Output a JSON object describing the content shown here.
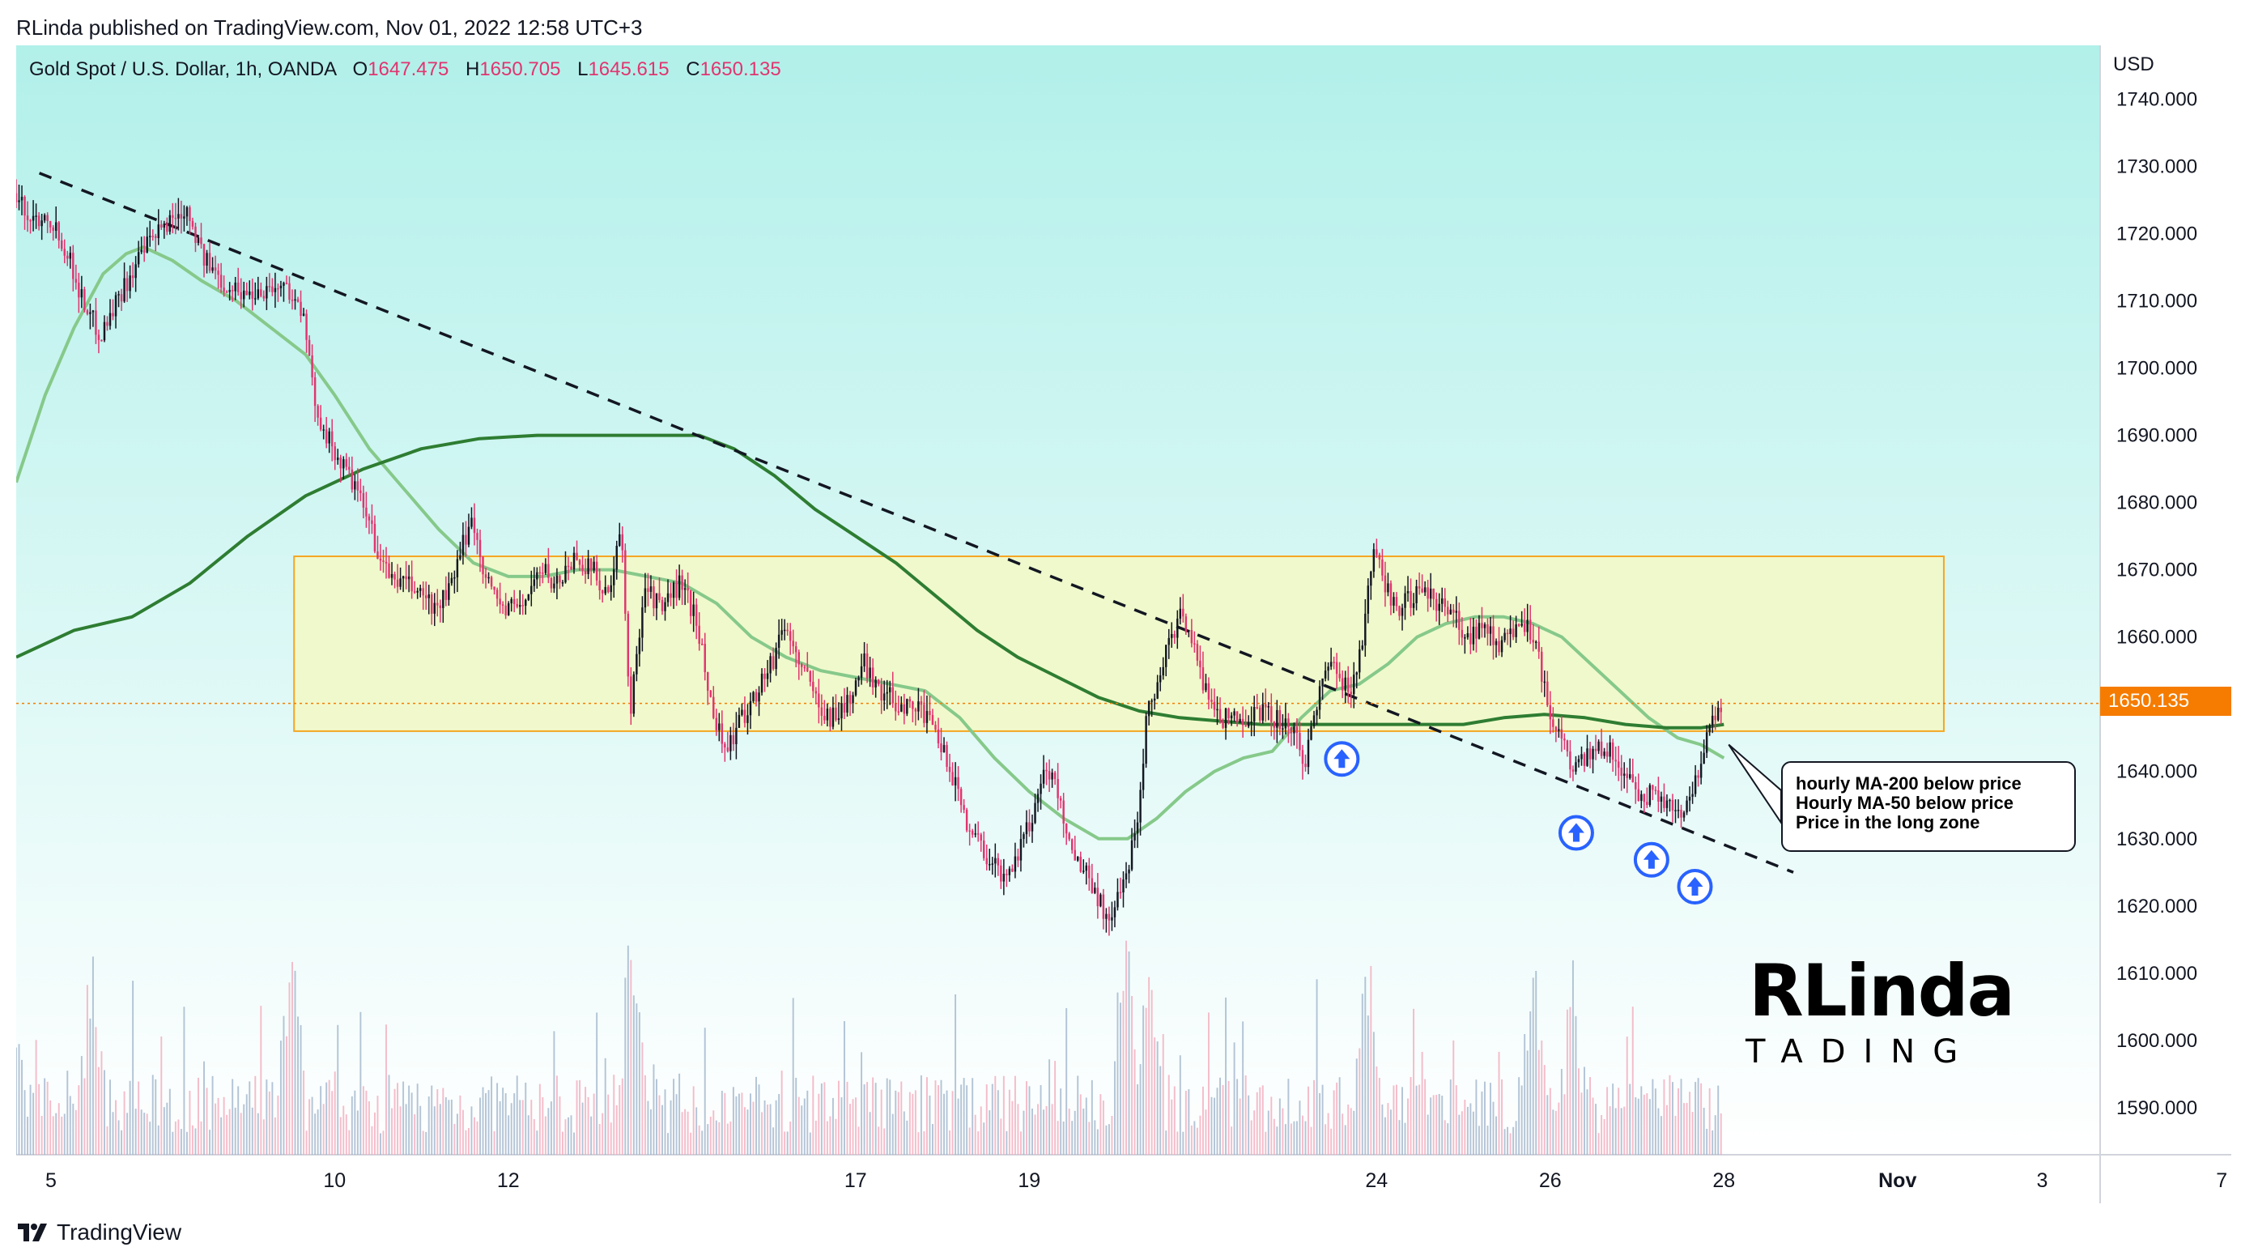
{
  "header": {
    "publisher": "RLinda published on TradingView.com, Nov 01, 2022 12:58 UTC+3"
  },
  "legend": {
    "symbol": "Gold Spot / U.S. Dollar, 1h, OANDA",
    "open_key": "O",
    "open": "1647.475",
    "high_key": "H",
    "high": "1650.705",
    "low_key": "L",
    "low": "1645.615",
    "close_key": "C",
    "close": "1650.135"
  },
  "price_axis": {
    "currency": "USD",
    "current_price": "1650.135"
  },
  "annotation": {
    "lines": [
      "hourly MA-200 below price",
      "Hourly MA-50 below price",
      "Price in the long zone"
    ]
  },
  "watermark": {
    "main": "RLinda",
    "sub": "TADING"
  },
  "footer": {
    "brand": "TradingView"
  },
  "colors": {
    "bg_top": "#b2f0ea",
    "bg_bottom": "#ffffff",
    "up": "#131722",
    "down": "#e0356f",
    "ma50": "#86c98a",
    "ma200": "#2e7d32",
    "zone_fill": "#f3f9c4",
    "zone_border": "#f5a623",
    "trend": "#131722",
    "arrow": "#2962ff",
    "price_line": "#f57c00"
  },
  "chart_data": {
    "type": "candlestick",
    "x_ticks": [
      "5",
      "10",
      "12",
      "17",
      "19",
      "24",
      "26",
      "28",
      "Nov",
      "3",
      "7"
    ],
    "y_ticks": [
      "1740.000",
      "1730.000",
      "1720.000",
      "1710.000",
      "1700.000",
      "1690.000",
      "1680.000",
      "1670.000",
      "1660.000",
      "1650.000",
      "1640.000",
      "1630.000",
      "1620.000",
      "1610.000",
      "1600.000",
      "1590.000"
    ],
    "ylim": [
      1583,
      1748
    ],
    "x_range": [
      0,
      720
    ],
    "x_tick_positions": [
      12,
      110,
      170,
      290,
      350,
      470,
      530,
      590,
      650,
      700,
      762
    ],
    "price_anchors": [
      [
        0,
        1726
      ],
      [
        6,
        1722
      ],
      [
        12,
        1723
      ],
      [
        18,
        1718
      ],
      [
        24,
        1710
      ],
      [
        30,
        1705
      ],
      [
        38,
        1712
      ],
      [
        46,
        1718
      ],
      [
        54,
        1722
      ],
      [
        60,
        1724
      ],
      [
        66,
        1716
      ],
      [
        72,
        1713
      ],
      [
        80,
        1711
      ],
      [
        88,
        1712
      ],
      [
        95,
        1712
      ],
      [
        100,
        1708
      ],
      [
        104,
        1695
      ],
      [
        110,
        1688
      ],
      [
        116,
        1684
      ],
      [
        122,
        1678
      ],
      [
        128,
        1670
      ],
      [
        134,
        1668
      ],
      [
        140,
        1667
      ],
      [
        146,
        1664
      ],
      [
        152,
        1668
      ],
      [
        158,
        1678
      ],
      [
        164,
        1668
      ],
      [
        170,
        1664
      ],
      [
        176,
        1665
      ],
      [
        182,
        1670
      ],
      [
        188,
        1668
      ],
      [
        194,
        1672
      ],
      [
        200,
        1670
      ],
      [
        206,
        1666
      ],
      [
        210,
        1676
      ],
      [
        213,
        1648
      ],
      [
        218,
        1668
      ],
      [
        224,
        1664
      ],
      [
        230,
        1668
      ],
      [
        236,
        1663
      ],
      [
        240,
        1652
      ],
      [
        246,
        1643
      ],
      [
        252,
        1648
      ],
      [
        258,
        1653
      ],
      [
        262,
        1656
      ],
      [
        266,
        1662
      ],
      [
        270,
        1658
      ],
      [
        276,
        1652
      ],
      [
        282,
        1648
      ],
      [
        288,
        1650
      ],
      [
        294,
        1656
      ],
      [
        300,
        1652
      ],
      [
        306,
        1650
      ],
      [
        312,
        1650
      ],
      [
        318,
        1646
      ],
      [
        324,
        1640
      ],
      [
        330,
        1632
      ],
      [
        336,
        1628
      ],
      [
        342,
        1624
      ],
      [
        346,
        1627
      ],
      [
        352,
        1633
      ],
      [
        356,
        1641
      ],
      [
        360,
        1638
      ],
      [
        366,
        1628
      ],
      [
        372,
        1624
      ],
      [
        378,
        1618
      ],
      [
        383,
        1622
      ],
      [
        388,
        1632
      ],
      [
        392,
        1650
      ],
      [
        396,
        1654
      ],
      [
        400,
        1660
      ],
      [
        404,
        1664
      ],
      [
        408,
        1658
      ],
      [
        412,
        1652
      ],
      [
        418,
        1648
      ],
      [
        424,
        1648
      ],
      [
        430,
        1649
      ],
      [
        436,
        1648
      ],
      [
        442,
        1646
      ],
      [
        446,
        1641
      ],
      [
        450,
        1650
      ],
      [
        454,
        1656
      ],
      [
        458,
        1654
      ],
      [
        462,
        1652
      ],
      [
        466,
        1660
      ],
      [
        470,
        1672
      ],
      [
        474,
        1668
      ],
      [
        478,
        1664
      ],
      [
        484,
        1666
      ],
      [
        490,
        1666
      ],
      [
        496,
        1664
      ],
      [
        502,
        1660
      ],
      [
        508,
        1662
      ],
      [
        514,
        1658
      ],
      [
        520,
        1663
      ],
      [
        526,
        1660
      ],
      [
        530,
        1650
      ],
      [
        534,
        1646
      ],
      [
        538,
        1640
      ],
      [
        544,
        1642
      ],
      [
        550,
        1644
      ],
      [
        556,
        1640
      ],
      [
        562,
        1636
      ],
      [
        568,
        1637
      ],
      [
        574,
        1634
      ],
      [
        580,
        1636
      ],
      [
        584,
        1643
      ],
      [
        588,
        1648
      ],
      [
        590,
        1650
      ]
    ],
    "candle_count": 600,
    "ma50_points": [
      [
        0,
        1683
      ],
      [
        10,
        1696
      ],
      [
        20,
        1706
      ],
      [
        30,
        1714
      ],
      [
        38,
        1717
      ],
      [
        44,
        1718
      ],
      [
        54,
        1716
      ],
      [
        64,
        1713
      ],
      [
        76,
        1710
      ],
      [
        88,
        1706
      ],
      [
        100,
        1702
      ],
      [
        110,
        1696
      ],
      [
        122,
        1688
      ],
      [
        134,
        1682
      ],
      [
        146,
        1676
      ],
      [
        158,
        1671
      ],
      [
        170,
        1669
      ],
      [
        182,
        1669
      ],
      [
        194,
        1670
      ],
      [
        206,
        1670
      ],
      [
        218,
        1669
      ],
      [
        230,
        1668
      ],
      [
        242,
        1665
      ],
      [
        254,
        1660
      ],
      [
        266,
        1657
      ],
      [
        278,
        1655
      ],
      [
        290,
        1654
      ],
      [
        302,
        1653
      ],
      [
        314,
        1652
      ],
      [
        326,
        1648
      ],
      [
        338,
        1642
      ],
      [
        350,
        1637
      ],
      [
        362,
        1633
      ],
      [
        374,
        1630
      ],
      [
        384,
        1630
      ],
      [
        394,
        1633
      ],
      [
        404,
        1637
      ],
      [
        414,
        1640
      ],
      [
        424,
        1642
      ],
      [
        434,
        1643
      ],
      [
        444,
        1648
      ],
      [
        454,
        1652
      ],
      [
        464,
        1653
      ],
      [
        474,
        1656
      ],
      [
        484,
        1660
      ],
      [
        494,
        1662
      ],
      [
        504,
        1663
      ],
      [
        514,
        1663
      ],
      [
        524,
        1662
      ],
      [
        534,
        1660
      ],
      [
        544,
        1656
      ],
      [
        554,
        1652
      ],
      [
        564,
        1648
      ],
      [
        574,
        1645
      ],
      [
        582,
        1644
      ],
      [
        590,
        1642
      ]
    ],
    "ma200_points": [
      [
        0,
        1657
      ],
      [
        20,
        1661
      ],
      [
        40,
        1663
      ],
      [
        60,
        1668
      ],
      [
        80,
        1675
      ],
      [
        100,
        1681
      ],
      [
        120,
        1685
      ],
      [
        140,
        1688
      ],
      [
        160,
        1689.5
      ],
      [
        180,
        1690
      ],
      [
        200,
        1690
      ],
      [
        220,
        1690
      ],
      [
        236,
        1690
      ],
      [
        248,
        1688
      ],
      [
        262,
        1684
      ],
      [
        276,
        1679
      ],
      [
        290,
        1675
      ],
      [
        304,
        1671
      ],
      [
        318,
        1666
      ],
      [
        332,
        1661
      ],
      [
        346,
        1657
      ],
      [
        360,
        1654
      ],
      [
        374,
        1651
      ],
      [
        388,
        1649
      ],
      [
        402,
        1648
      ],
      [
        416,
        1647.5
      ],
      [
        430,
        1647
      ],
      [
        444,
        1647
      ],
      [
        458,
        1647
      ],
      [
        472,
        1647
      ],
      [
        486,
        1647
      ],
      [
        500,
        1647
      ],
      [
        514,
        1648
      ],
      [
        528,
        1648.5
      ],
      [
        542,
        1648
      ],
      [
        556,
        1647
      ],
      [
        570,
        1646.5
      ],
      [
        582,
        1646.5
      ],
      [
        590,
        1647
      ]
    ],
    "zone": {
      "x_from": 96,
      "x_to": 666,
      "y_low": 1646,
      "y_high": 1672
    },
    "trendline": {
      "x1": 8,
      "y1": 1729,
      "x2": 614,
      "y2": 1625
    },
    "current_price": 1650.135,
    "signal_arrows": [
      {
        "x": 458,
        "y": 1645
      },
      {
        "x": 539,
        "y": 1634
      },
      {
        "x": 565,
        "y": 1630
      },
      {
        "x": 580,
        "y": 1626
      }
    ],
    "volume_max": 100,
    "grid": false,
    "legend": "top-left"
  }
}
